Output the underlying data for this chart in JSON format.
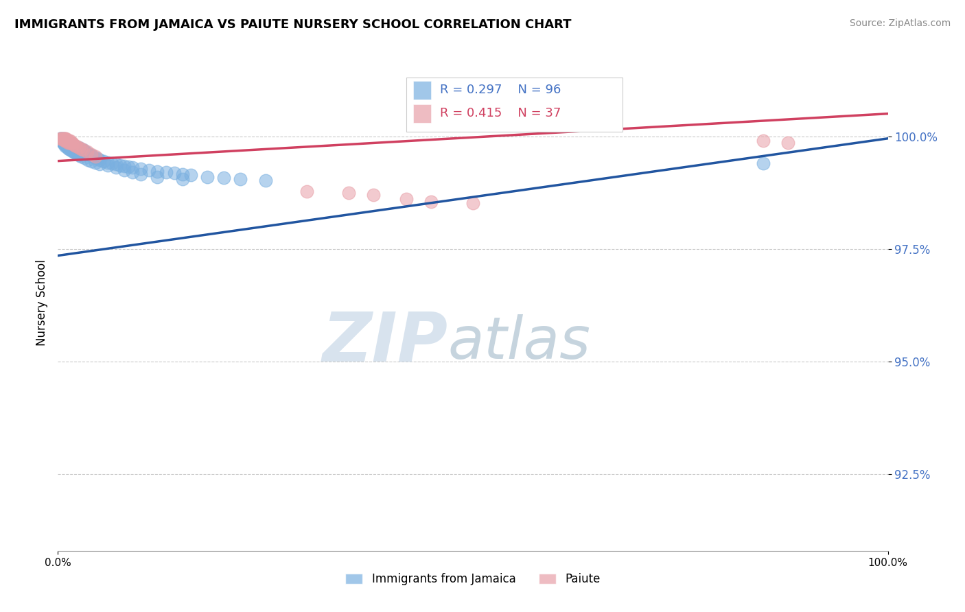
{
  "title": "IMMIGRANTS FROM JAMAICA VS PAIUTE NURSERY SCHOOL CORRELATION CHART",
  "source": "Source: ZipAtlas.com",
  "ylabel": "Nursery School",
  "ytick_labels": [
    "100.0%",
    "97.5%",
    "95.0%",
    "92.5%"
  ],
  "ytick_values": [
    1.0,
    0.975,
    0.95,
    0.925
  ],
  "xmin": 0.0,
  "xmax": 1.0,
  "ymin": 0.908,
  "ymax": 1.018,
  "blue_R": 0.297,
  "blue_N": 96,
  "pink_R": 0.415,
  "pink_N": 37,
  "blue_color": "#7ab0e0",
  "pink_color": "#e8a0a8",
  "blue_line_color": "#2155a0",
  "pink_line_color": "#d04060",
  "legend_label_blue": "Immigrants from Jamaica",
  "legend_label_pink": "Paiute",
  "blue_line_x0": 0.0,
  "blue_line_x1": 1.0,
  "blue_line_y0": 0.9735,
  "blue_line_y1": 0.9995,
  "pink_line_x0": 0.0,
  "pink_line_x1": 1.0,
  "pink_line_y0": 0.9945,
  "pink_line_y1": 1.005,
  "blue_x": [
    0.003,
    0.004,
    0.004,
    0.005,
    0.005,
    0.005,
    0.006,
    0.006,
    0.006,
    0.007,
    0.007,
    0.008,
    0.008,
    0.009,
    0.009,
    0.01,
    0.01,
    0.01,
    0.011,
    0.011,
    0.012,
    0.012,
    0.013,
    0.013,
    0.014,
    0.015,
    0.015,
    0.016,
    0.017,
    0.018,
    0.018,
    0.019,
    0.02,
    0.02,
    0.021,
    0.022,
    0.023,
    0.025,
    0.025,
    0.027,
    0.028,
    0.03,
    0.032,
    0.033,
    0.035,
    0.037,
    0.04,
    0.042,
    0.045,
    0.048,
    0.05,
    0.055,
    0.06,
    0.065,
    0.07,
    0.075,
    0.08,
    0.085,
    0.09,
    0.1,
    0.11,
    0.12,
    0.13,
    0.14,
    0.15,
    0.16,
    0.18,
    0.2,
    0.22,
    0.25,
    0.003,
    0.005,
    0.007,
    0.009,
    0.011,
    0.013,
    0.015,
    0.017,
    0.019,
    0.021,
    0.023,
    0.025,
    0.028,
    0.032,
    0.036,
    0.04,
    0.045,
    0.05,
    0.06,
    0.07,
    0.08,
    0.09,
    0.1,
    0.12,
    0.15,
    0.85
  ],
  "blue_y": [
    0.9995,
    0.9995,
    0.999,
    0.9995,
    0.999,
    0.999,
    0.9995,
    0.999,
    0.9985,
    0.9995,
    0.999,
    0.999,
    0.9985,
    0.999,
    0.9985,
    0.999,
    0.9985,
    0.998,
    0.9985,
    0.998,
    0.9985,
    0.998,
    0.9985,
    0.998,
    0.998,
    0.9985,
    0.9975,
    0.998,
    0.9975,
    0.998,
    0.9975,
    0.9975,
    0.9978,
    0.9972,
    0.9975,
    0.9972,
    0.997,
    0.9975,
    0.9968,
    0.9972,
    0.9968,
    0.997,
    0.9968,
    0.9965,
    0.9962,
    0.996,
    0.9958,
    0.9955,
    0.9952,
    0.995,
    0.9948,
    0.9945,
    0.9942,
    0.994,
    0.9938,
    0.9936,
    0.9934,
    0.9932,
    0.993,
    0.9928,
    0.9925,
    0.9922,
    0.992,
    0.9918,
    0.9916,
    0.9914,
    0.991,
    0.9908,
    0.9905,
    0.9902,
    0.9995,
    0.9988,
    0.9982,
    0.9978,
    0.9975,
    0.9972,
    0.997,
    0.9968,
    0.9965,
    0.9963,
    0.9961,
    0.9958,
    0.9955,
    0.9952,
    0.9948,
    0.9945,
    0.9942,
    0.9938,
    0.9935,
    0.993,
    0.9925,
    0.992,
    0.9915,
    0.991,
    0.9905,
    0.994
  ],
  "pink_x": [
    0.003,
    0.004,
    0.005,
    0.006,
    0.007,
    0.008,
    0.008,
    0.009,
    0.009,
    0.01,
    0.01,
    0.011,
    0.012,
    0.012,
    0.013,
    0.014,
    0.015,
    0.015,
    0.016,
    0.017,
    0.018,
    0.02,
    0.022,
    0.025,
    0.028,
    0.03,
    0.035,
    0.04,
    0.045,
    0.3,
    0.35,
    0.38,
    0.42,
    0.45,
    0.5,
    0.85,
    0.88
  ],
  "pink_y": [
    0.9995,
    0.9995,
    0.9995,
    0.9995,
    0.9995,
    0.9995,
    0.999,
    0.9995,
    0.999,
    0.9995,
    0.999,
    0.999,
    0.999,
    0.9985,
    0.999,
    0.9985,
    0.999,
    0.9985,
    0.9985,
    0.9985,
    0.9982,
    0.998,
    0.9978,
    0.9975,
    0.9972,
    0.997,
    0.9965,
    0.996,
    0.9955,
    0.9878,
    0.9875,
    0.987,
    0.986,
    0.9855,
    0.9852,
    0.999,
    0.9985
  ]
}
